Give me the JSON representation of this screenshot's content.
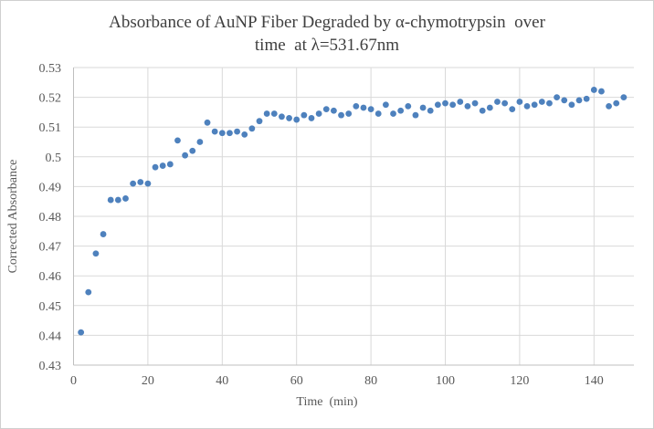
{
  "chart_data": {
    "type": "scatter",
    "title_line1": "Absorbance of AuNP Fiber Degraded by α-chymotrypsin  over",
    "title_line2": "time  at λ=531.67nm",
    "xlabel": "Time  (min)",
    "ylabel": "Corrected Absorbance",
    "xlim": [
      0,
      150
    ],
    "ylim": [
      0.43,
      0.53
    ],
    "x_ticks": [
      0,
      20,
      40,
      60,
      80,
      100,
      120,
      140
    ],
    "y_ticks": [
      "0.53",
      "0.52",
      "0.51",
      "0.5",
      "0.49",
      "0.48",
      "0.47",
      "0.46",
      "0.45",
      "0.44",
      "0.43"
    ],
    "y_tick_values": [
      0.53,
      0.52,
      0.51,
      0.5,
      0.49,
      0.48,
      0.47,
      0.46,
      0.45,
      0.44,
      0.43
    ],
    "grid": true,
    "legend": "none",
    "marker_color": "#4e81bd",
    "gridline_color": "#d9d9d9",
    "axis_line_color": "#bfbfbf",
    "tick_label_color": "#595959",
    "title_color": "#3f3f3f",
    "series": [
      {
        "name": "Corrected Absorbance vs Time",
        "points": [
          [
            2,
            0.441
          ],
          [
            4,
            0.4545
          ],
          [
            6,
            0.4675
          ],
          [
            8,
            0.474
          ],
          [
            10,
            0.4855
          ],
          [
            12,
            0.4855
          ],
          [
            14,
            0.486
          ],
          [
            16,
            0.491
          ],
          [
            18,
            0.4915
          ],
          [
            20,
            0.491
          ],
          [
            22,
            0.4965
          ],
          [
            24,
            0.497
          ],
          [
            26,
            0.4975
          ],
          [
            28,
            0.5055
          ],
          [
            30,
            0.5005
          ],
          [
            32,
            0.502
          ],
          [
            34,
            0.505
          ],
          [
            36,
            0.5115
          ],
          [
            38,
            0.5085
          ],
          [
            40,
            0.508
          ],
          [
            42,
            0.508
          ],
          [
            44,
            0.5085
          ],
          [
            46,
            0.5075
          ],
          [
            48,
            0.5095
          ],
          [
            50,
            0.512
          ],
          [
            52,
            0.5145
          ],
          [
            54,
            0.5145
          ],
          [
            56,
            0.5135
          ],
          [
            58,
            0.513
          ],
          [
            60,
            0.5125
          ],
          [
            62,
            0.514
          ],
          [
            64,
            0.513
          ],
          [
            66,
            0.5145
          ],
          [
            68,
            0.516
          ],
          [
            70,
            0.5155
          ],
          [
            72,
            0.514
          ],
          [
            74,
            0.5145
          ],
          [
            76,
            0.517
          ],
          [
            78,
            0.5165
          ],
          [
            80,
            0.516
          ],
          [
            82,
            0.5145
          ],
          [
            84,
            0.5175
          ],
          [
            86,
            0.5145
          ],
          [
            88,
            0.5155
          ],
          [
            90,
            0.517
          ],
          [
            92,
            0.514
          ],
          [
            94,
            0.5165
          ],
          [
            96,
            0.5155
          ],
          [
            98,
            0.5175
          ],
          [
            100,
            0.518
          ],
          [
            102,
            0.5175
          ],
          [
            104,
            0.5185
          ],
          [
            106,
            0.517
          ],
          [
            108,
            0.518
          ],
          [
            110,
            0.5155
          ],
          [
            112,
            0.5165
          ],
          [
            114,
            0.5185
          ],
          [
            116,
            0.518
          ],
          [
            118,
            0.516
          ],
          [
            120,
            0.5185
          ],
          [
            122,
            0.517
          ],
          [
            124,
            0.5175
          ],
          [
            126,
            0.5185
          ],
          [
            128,
            0.518
          ],
          [
            130,
            0.52
          ],
          [
            132,
            0.519
          ],
          [
            134,
            0.5175
          ],
          [
            136,
            0.519
          ],
          [
            138,
            0.5195
          ],
          [
            140,
            0.5225
          ],
          [
            142,
            0.522
          ],
          [
            144,
            0.517
          ],
          [
            146,
            0.518
          ],
          [
            148,
            0.52
          ]
        ]
      }
    ]
  }
}
